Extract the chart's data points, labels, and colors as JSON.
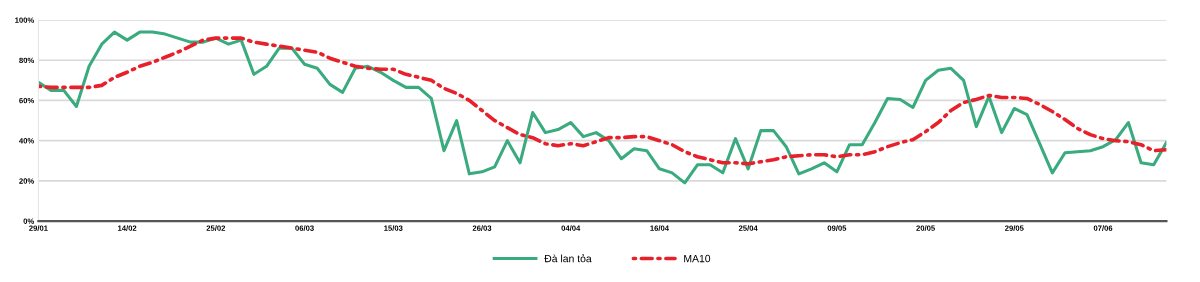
{
  "chart_data": {
    "type": "line",
    "categories": [
      "29/01",
      null,
      null,
      null,
      null,
      null,
      null,
      "14/02",
      null,
      null,
      null,
      null,
      null,
      null,
      "25/02",
      null,
      null,
      null,
      null,
      null,
      null,
      "06/03",
      null,
      null,
      null,
      null,
      null,
      null,
      "15/03",
      null,
      null,
      null,
      null,
      null,
      null,
      "26/03",
      null,
      null,
      null,
      null,
      null,
      null,
      "04/04",
      null,
      null,
      null,
      null,
      null,
      null,
      "16/04",
      null,
      null,
      null,
      null,
      null,
      null,
      "25/04",
      null,
      null,
      null,
      null,
      null,
      null,
      "09/05",
      null,
      null,
      null,
      null,
      null,
      null,
      "20/05",
      null,
      null,
      null,
      null,
      null,
      null,
      "29/05",
      null,
      null,
      null,
      null,
      null,
      null,
      "07/06",
      null,
      null,
      null,
      null,
      null
    ],
    "series": [
      {
        "name": "Đà lan tỏa",
        "color": "#3aaa7f",
        "line_style": "solid",
        "values": [
          69,
          65,
          65,
          57,
          77,
          88,
          94,
          90,
          94,
          94,
          93,
          91,
          89,
          89,
          91,
          88,
          90,
          73,
          77,
          86,
          86,
          78,
          76,
          68,
          64,
          76,
          77,
          74,
          70,
          66.5,
          66.5,
          61,
          35,
          50,
          23.5,
          24.5,
          27,
          40,
          29,
          54,
          44,
          45.5,
          49,
          42,
          44,
          40,
          31,
          36,
          35,
          26,
          24,
          19,
          28,
          28,
          24,
          41,
          26,
          45,
          45,
          37,
          23.5,
          26,
          29,
          24.5,
          38,
          38,
          49,
          61,
          60.5,
          56.5,
          70,
          75,
          76,
          70,
          47,
          62,
          44,
          56,
          53,
          38.5,
          24,
          34,
          34.5,
          35,
          37,
          40.5,
          49,
          29,
          28,
          39
        ]
      },
      {
        "name": "MA10",
        "color": "#e8202a",
        "line_style": "dotted",
        "values": [
          67,
          66.5,
          66.5,
          66.5,
          66.5,
          67.5,
          71.5,
          74,
          77,
          79,
          81.5,
          84,
          87,
          90,
          91,
          91,
          91,
          89,
          88,
          87,
          86,
          85,
          84,
          81,
          79,
          77,
          76,
          75.5,
          75.5,
          73,
          71.5,
          70,
          66,
          63.5,
          60,
          55,
          50,
          46.5,
          43,
          41.5,
          38.5,
          37.5,
          38.5,
          37.5,
          39.5,
          41.5,
          41.5,
          42,
          42,
          40,
          38,
          34.5,
          32,
          30.5,
          29,
          29,
          28.5,
          29.5,
          30.5,
          32,
          32.5,
          33,
          33,
          32,
          33,
          33,
          34.5,
          37,
          39,
          40.5,
          44.5,
          49,
          55,
          59,
          60.5,
          62.5,
          61.5,
          61.5,
          61,
          58,
          54.5,
          50.5,
          46,
          43,
          41,
          40,
          39.5,
          38,
          35,
          35.5
        ]
      }
    ],
    "ylim": [
      0,
      100
    ],
    "yticks": [
      {
        "value": 0,
        "label": "0%"
      },
      {
        "value": 20,
        "label": "20%"
      },
      {
        "value": 40,
        "label": "40%"
      },
      {
        "value": 60,
        "label": "60%"
      },
      {
        "value": 80,
        "label": "80%"
      },
      {
        "value": 100,
        "label": "100%"
      }
    ],
    "grid": "y",
    "legend": "bottom",
    "marker": "none"
  }
}
